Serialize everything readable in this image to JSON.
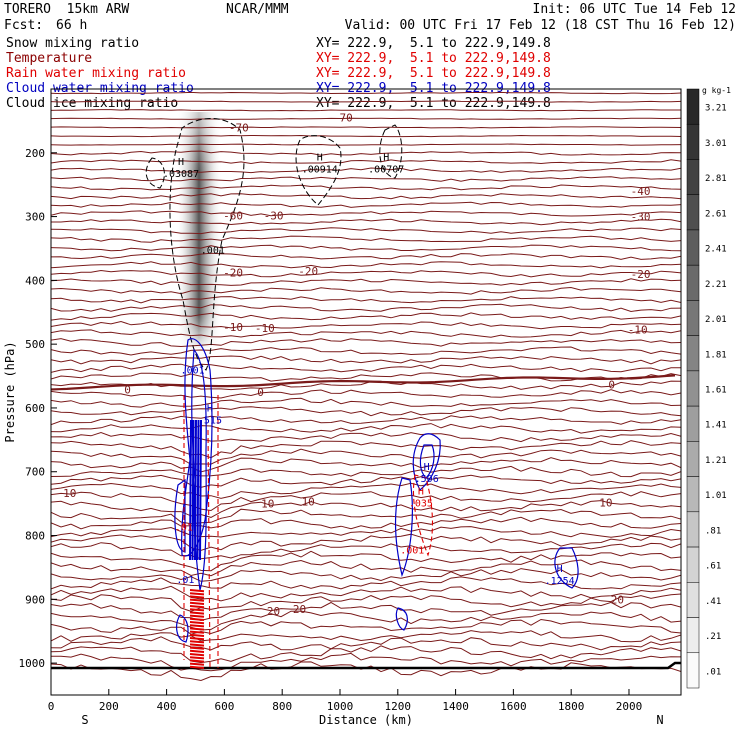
{
  "header": {
    "model": "TORERO  15km ARW",
    "center": "NCAR/MMM",
    "init": "Init: 06 UTC Tue 14 Feb 12",
    "fcst_label": "Fcst:",
    "fcst_value": "66 h",
    "valid": "Valid: 00 UTC Fri 17 Feb 12 (18 CST Thu 16 Feb 12)"
  },
  "fields": [
    {
      "name": "Snow mixing ratio",
      "xy": "XY= 222.9,  5.1 to 222.9,149.8",
      "color": "#000000"
    },
    {
      "name": "Temperature",
      "xy": "XY= 222.9,  5.1 to 222.9,149.8",
      "color": "#8b0000"
    },
    {
      "name": "Rain water mixing ratio",
      "xy": "XY= 222.9,  5.1 to 222.9,149.8",
      "color": "#e00000"
    },
    {
      "name": "Cloud water mixing ratio",
      "xy": "XY= 222.9,  5.1 to 222.9,149.8",
      "color": "#0000c0"
    },
    {
      "name": "Cloud ice mixing ratio",
      "xy": "XY= 222.9,  5.1 to 222.9,149.8",
      "color": "#000000"
    }
  ],
  "chart_data": {
    "type": "cross-section contour",
    "xlabel": "Distance (km)",
    "ylabel": "Pressure (hPa)",
    "xlim": [
      0,
      2180
    ],
    "ylim": [
      1050,
      100
    ],
    "x_ticks": [
      0,
      200,
      400,
      600,
      800,
      1000,
      1200,
      1400,
      1600,
      1800,
      2000
    ],
    "y_ticks": [
      200,
      300,
      400,
      500,
      600,
      700,
      800,
      900,
      1000
    ],
    "left_end": "S",
    "right_end": "N",
    "colorbar_unit": "g kg-1",
    "colorbar_labels": [
      "3.21",
      "3.01",
      "2.81",
      "2.61",
      "2.41",
      "2.21",
      "2.01",
      "1.81",
      "1.61",
      "1.41",
      "1.21",
      "1.01",
      ".81",
      ".61",
      ".41",
      ".21",
      ".01"
    ],
    "temperature_labels": [
      {
        "text": "-70",
        "x": 650,
        "p": 160
      },
      {
        "text": "-70",
        "x": 1010,
        "p": 145
      },
      {
        "text": "-40",
        "x": 2040,
        "p": 260
      },
      {
        "text": "-60",
        "x": 630,
        "p": 298
      },
      {
        "text": "-30",
        "x": 770,
        "p": 298
      },
      {
        "text": "-30",
        "x": 2040,
        "p": 300
      },
      {
        "text": "-20",
        "x": 630,
        "p": 388
      },
      {
        "text": "-20",
        "x": 890,
        "p": 385
      },
      {
        "text": "-20",
        "x": 2040,
        "p": 390
      },
      {
        "text": "-10",
        "x": 630,
        "p": 473
      },
      {
        "text": "-10",
        "x": 740,
        "p": 475
      },
      {
        "text": "-10",
        "x": 2030,
        "p": 477
      },
      {
        "text": "0",
        "x": 265,
        "p": 571
      },
      {
        "text": "0",
        "x": 725,
        "p": 575
      },
      {
        "text": "0",
        "x": 1940,
        "p": 563
      },
      {
        "text": "10",
        "x": 65,
        "p": 733
      },
      {
        "text": "10",
        "x": 750,
        "p": 750
      },
      {
        "text": "10",
        "x": 890,
        "p": 747
      },
      {
        "text": "10",
        "x": 1920,
        "p": 748
      },
      {
        "text": "20",
        "x": 770,
        "p": 918
      },
      {
        "text": "20",
        "x": 860,
        "p": 915
      },
      {
        "text": "20",
        "x": 1960,
        "p": 900
      }
    ],
    "extrema_labels": [
      {
        "mark": "H",
        "value": ".03087",
        "x": 450,
        "p": 232,
        "color": "#000000"
      },
      {
        "mark": "H",
        "value": ".00914",
        "x": 930,
        "p": 225,
        "color": "#000000"
      },
      {
        "mark": "H",
        "value": ".00707",
        "x": 1160,
        "p": 225,
        "color": "#000000"
      },
      {
        "mark": "",
        "value": ".001",
        "x": 560,
        "p": 352,
        "color": "#000000"
      },
      {
        "mark": "",
        "value": ".001",
        "x": 490,
        "p": 540,
        "color": "#0000c0"
      },
      {
        "mark": "H",
        "value": ".515",
        "x": 550,
        "p": 618,
        "color": "#0000c0"
      },
      {
        "mark": "H",
        "value": ".506",
        "x": 1300,
        "p": 710,
        "color": "#0000c0"
      },
      {
        "mark": "H",
        "value": ".035",
        "x": 1280,
        "p": 748,
        "color": "#e00000"
      },
      {
        "mark": "",
        "value": ".001",
        "x": 1250,
        "p": 822,
        "color": "#e00000"
      },
      {
        "mark": "",
        "value": ".01",
        "x": 460,
        "p": 786,
        "color": "#e00000"
      },
      {
        "mark": "",
        "value": ".01",
        "x": 465,
        "p": 868,
        "color": "#0000c0"
      },
      {
        "mark": "H",
        "value": ".1254",
        "x": 1760,
        "p": 870,
        "color": "#0000c0"
      }
    ]
  }
}
